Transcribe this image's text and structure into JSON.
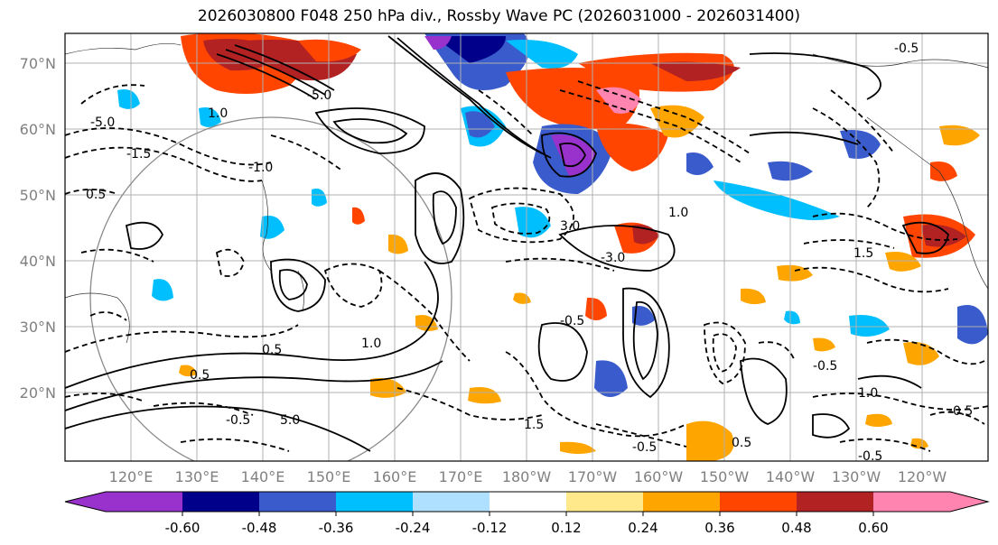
{
  "title": "2026030800 F048 250 hPa div., Rossby Wave PC (2026031000 - 2026031400)",
  "map": {
    "lat_labels": [
      "70°N",
      "60°N",
      "50°N",
      "40°N",
      "30°N",
      "20°N"
    ],
    "lon_labels": [
      "120°E",
      "130°E",
      "140°E",
      "150°E",
      "160°E",
      "170°E",
      "180°W",
      "170°W",
      "160°W",
      "150°W",
      "140°W",
      "130°W",
      "120°W"
    ],
    "contour_labels": [
      "-0.5",
      "-1.0",
      "-1.5",
      "-3.0",
      "-5.0",
      "0.5",
      "1.0",
      "1.5",
      "3.0",
      "5.0"
    ]
  },
  "colorbar": {
    "colors": [
      "#9932cc",
      "#00008b",
      "#3a5bcc",
      "#00bfff",
      "#b0e0ff",
      "#ffffff",
      "#ffe98a",
      "#ffa500",
      "#ff4500",
      "#b22222",
      "#ff85b0"
    ],
    "tick_labels": [
      "-0.60",
      "-0.48",
      "-0.36",
      "-0.24",
      "-0.12",
      "0.12",
      "0.24",
      "0.36",
      "0.48",
      "0.60"
    ]
  }
}
